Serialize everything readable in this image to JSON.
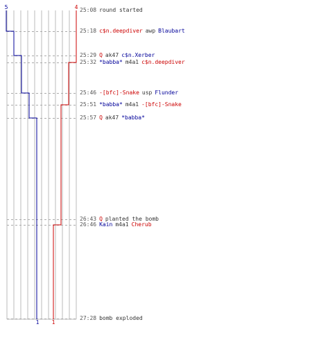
{
  "colors": {
    "terrorist": "#cc0000",
    "counter_terrorist": "#000099",
    "neutral": "#333333",
    "time": "#555555",
    "grid": "#bbbbbb",
    "dash": "#aaaaaa",
    "center_line": "#666666"
  },
  "scores": {
    "ct_start": "5",
    "t_start": "4",
    "ct_end": "1",
    "t_end": "1"
  },
  "counts": {
    "ct_start": 5,
    "t_start": 4
  },
  "events": [
    {
      "time": "25:08",
      "parts": [
        {
          "text": "round started",
          "side": "w"
        }
      ]
    },
    {
      "time": "25:18",
      "parts": [
        {
          "text": "c$n.deepdiver",
          "side": "T"
        },
        {
          "text": "awp",
          "side": "w"
        },
        {
          "text": "Blaubart",
          "side": "CT"
        }
      ]
    },
    {
      "time": "25:29",
      "parts": [
        {
          "text": "Q",
          "side": "T"
        },
        {
          "text": "ak47",
          "side": "w"
        },
        {
          "text": "c$n.Xerber",
          "side": "CT"
        }
      ]
    },
    {
      "time": "25:32",
      "parts": [
        {
          "text": "*babba*",
          "side": "CT"
        },
        {
          "text": "m4a1",
          "side": "w"
        },
        {
          "text": "c$n.deepdiver",
          "side": "T"
        }
      ]
    },
    {
      "time": "25:46",
      "parts": [
        {
          "text": "-[bfc]-Snake",
          "side": "T"
        },
        {
          "text": "usp",
          "side": "w"
        },
        {
          "text": "Flunder",
          "side": "CT"
        }
      ]
    },
    {
      "time": "25:51",
      "parts": [
        {
          "text": "*babba*",
          "side": "CT"
        },
        {
          "text": "m4a1",
          "side": "w"
        },
        {
          "text": "-[bfc]-Snake",
          "side": "T"
        }
      ]
    },
    {
      "time": "25:57",
      "parts": [
        {
          "text": "Q",
          "side": "T"
        },
        {
          "text": "ak47",
          "side": "w"
        },
        {
          "text": "*babba*",
          "side": "CT"
        }
      ]
    },
    {
      "time": "26:43",
      "parts": [
        {
          "text": "Q",
          "side": "T"
        },
        {
          "text": "planted the bomb",
          "side": "w"
        }
      ]
    },
    {
      "time": "26:46",
      "parts": [
        {
          "text": "Kain",
          "side": "CT"
        },
        {
          "text": "m4a1",
          "side": "w"
        },
        {
          "text": "Cherub",
          "side": "T"
        }
      ]
    },
    {
      "time": "27:28",
      "parts": [
        {
          "text": "bomb exploded",
          "side": "w"
        }
      ]
    }
  ]
}
